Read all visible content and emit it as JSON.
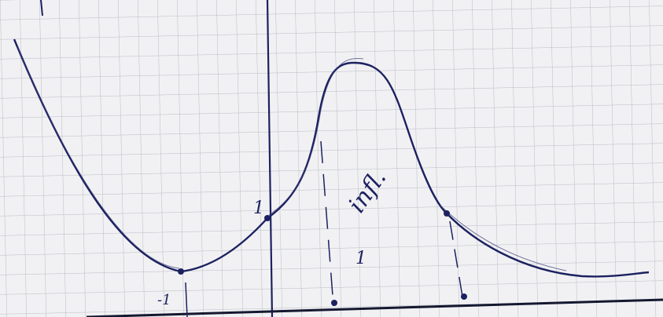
{
  "annotations": {
    "y_unit": "1",
    "x_minus_one": "-1",
    "infl_label": "infl.",
    "inner_one": "1"
  }
}
